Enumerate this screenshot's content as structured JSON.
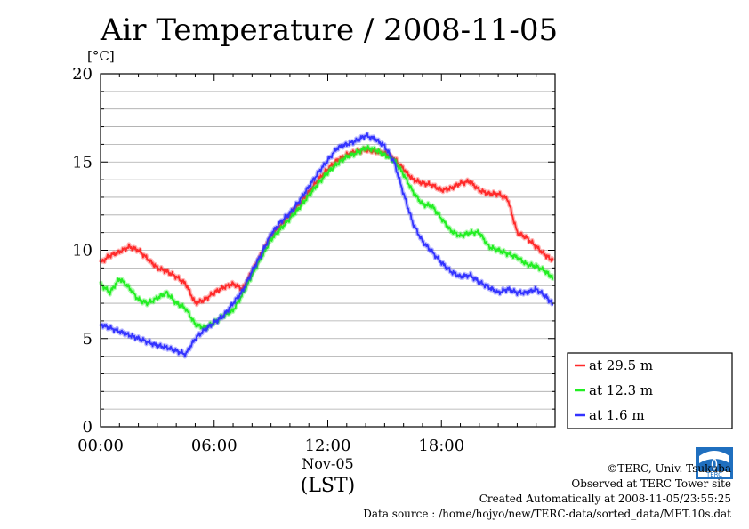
{
  "title": "Air Temperature / 2008-11-05",
  "unit_label": "[°C]",
  "xaxis_date": "Nov-05",
  "xaxis_zone": "(LST)",
  "credits": {
    "copyright": "©TERC, Univ. Tsukuba",
    "site": "Observed at TERC Tower site",
    "created": "Created Automatically at 2008-11-05/23:55:25",
    "source": "Data source : /home/hojyo/new/TERC-data/sorted_data/MET.10s.dat"
  },
  "logo_text": "TERC",
  "colors": {
    "red": "#ff2a2a",
    "green": "#22ee22",
    "blue": "#3333ff",
    "grid": "#aaaaaa"
  },
  "chart_data": {
    "type": "line",
    "title": "Air Temperature / 2008-11-05",
    "xlabel": "Nov-05 (LST)",
    "ylabel": "[°C]",
    "xlim": [
      0,
      24
    ],
    "ylim": [
      0,
      20
    ],
    "xticks": [
      0,
      6,
      12,
      18
    ],
    "xtick_labels": [
      "00:00",
      "06:00",
      "12:00",
      "18:00"
    ],
    "yticks": [
      0,
      5,
      10,
      15,
      20
    ],
    "ytick_labels": [
      "0",
      "5",
      "10",
      "15",
      "20"
    ],
    "grid": true,
    "legend_position": "right, below plot",
    "x": [
      0,
      0.5,
      1,
      1.5,
      2,
      2.5,
      3,
      3.5,
      4,
      4.5,
      5,
      5.5,
      6,
      6.5,
      7,
      7.5,
      8,
      8.5,
      9,
      9.5,
      10,
      10.5,
      11,
      11.5,
      12,
      12.5,
      13,
      13.5,
      14,
      14.5,
      15,
      15.5,
      16,
      16.5,
      17,
      17.5,
      18,
      18.5,
      19,
      19.5,
      20,
      20.5,
      21,
      21.5,
      22,
      22.5,
      23,
      23.5,
      23.9
    ],
    "series": [
      {
        "name": "at 29.5 m",
        "color": "#ff2a2a",
        "values": [
          9.3,
          9.7,
          9.9,
          10.2,
          10.0,
          9.5,
          9.0,
          8.8,
          8.5,
          8.1,
          7.0,
          7.2,
          7.6,
          7.9,
          8.1,
          7.8,
          8.8,
          9.8,
          10.8,
          11.4,
          12.0,
          12.6,
          13.3,
          14.0,
          14.6,
          15.1,
          15.4,
          15.6,
          15.7,
          15.6,
          15.5,
          15.2,
          14.6,
          14.0,
          13.8,
          13.7,
          13.4,
          13.5,
          13.8,
          13.9,
          13.4,
          13.2,
          13.2,
          12.9,
          11.0,
          10.7,
          10.2,
          9.7,
          9.4
        ]
      },
      {
        "name": "at 12.3 m",
        "color": "#22ee22",
        "values": [
          8.1,
          7.6,
          8.4,
          7.9,
          7.2,
          7.0,
          7.3,
          7.6,
          7.0,
          6.7,
          5.8,
          5.6,
          5.9,
          6.3,
          6.6,
          7.5,
          8.6,
          9.6,
          10.6,
          11.2,
          11.8,
          12.4,
          13.1,
          13.8,
          14.4,
          14.9,
          15.3,
          15.5,
          15.8,
          15.7,
          15.4,
          15.1,
          14.3,
          13.3,
          12.6,
          12.5,
          11.8,
          11.1,
          10.8,
          11.0,
          11.0,
          10.2,
          10.0,
          9.8,
          9.6,
          9.2,
          9.1,
          8.8,
          8.4
        ]
      },
      {
        "name": "at 1.6 m",
        "color": "#3333ff",
        "values": [
          5.8,
          5.6,
          5.4,
          5.2,
          5.0,
          4.8,
          4.6,
          4.5,
          4.3,
          4.1,
          5.0,
          5.5,
          5.9,
          6.3,
          7.0,
          7.7,
          8.8,
          9.8,
          10.9,
          11.6,
          12.1,
          12.8,
          13.6,
          14.4,
          15.1,
          15.8,
          16.0,
          16.2,
          16.5,
          16.3,
          15.9,
          15.0,
          13.2,
          11.5,
          10.5,
          9.9,
          9.3,
          8.8,
          8.5,
          8.6,
          8.2,
          7.9,
          7.6,
          7.8,
          7.6,
          7.6,
          7.8,
          7.4,
          6.9
        ]
      }
    ]
  }
}
